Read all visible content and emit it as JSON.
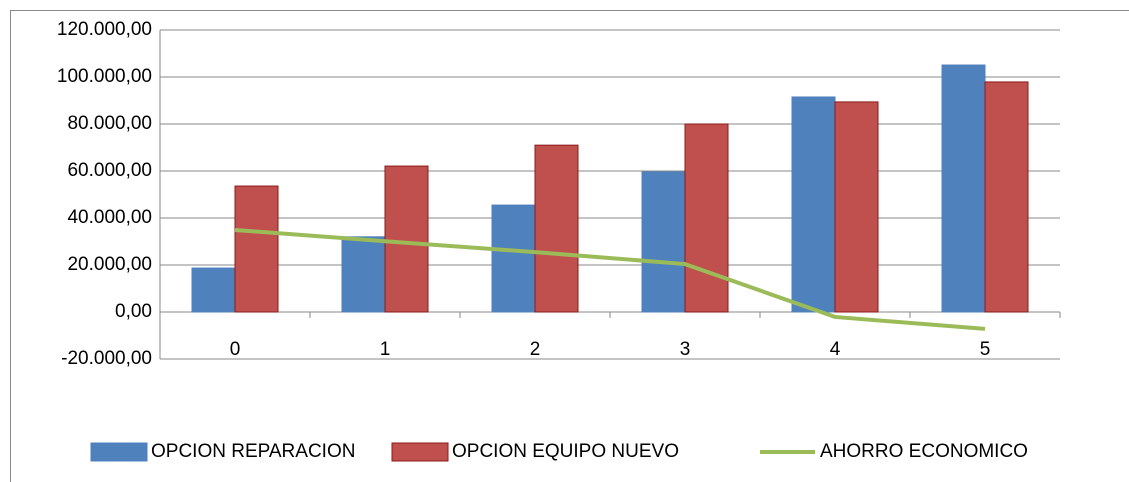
{
  "chart_data": {
    "type": "bar",
    "categories": [
      "0",
      "1",
      "2",
      "3",
      "4",
      "5"
    ],
    "series": [
      {
        "name": "OPCION REPARACION",
        "color": "#4f81bd",
        "type": "bar",
        "values": [
          18700,
          32000,
          45500,
          59600,
          91500,
          105100
        ]
      },
      {
        "name": "OPCION EQUIPO NUEVO",
        "color": "#c0504d",
        "type": "bar",
        "values": [
          53600,
          62100,
          71000,
          80000,
          89400,
          97900
        ]
      },
      {
        "name": "AHORRO ECONOMICO",
        "color": "#9bbb59",
        "type": "line",
        "values": [
          34900,
          30100,
          25500,
          20400,
          -2100,
          -7200
        ]
      }
    ],
    "ylim": [
      -20000,
      120000
    ],
    "yticks": [
      {
        "value": -20000,
        "label": "-20.000,00"
      },
      {
        "value": 0,
        "label": "0,00"
      },
      {
        "value": 20000,
        "label": "20.000,00"
      },
      {
        "value": 40000,
        "label": "40.000,00"
      },
      {
        "value": 60000,
        "label": "60.000,00"
      },
      {
        "value": 80000,
        "label": "80.000,00"
      },
      {
        "value": 100000,
        "label": "100.000,00"
      },
      {
        "value": 120000,
        "label": "120.000,00"
      }
    ],
    "grid": true,
    "legend": "bottom"
  }
}
